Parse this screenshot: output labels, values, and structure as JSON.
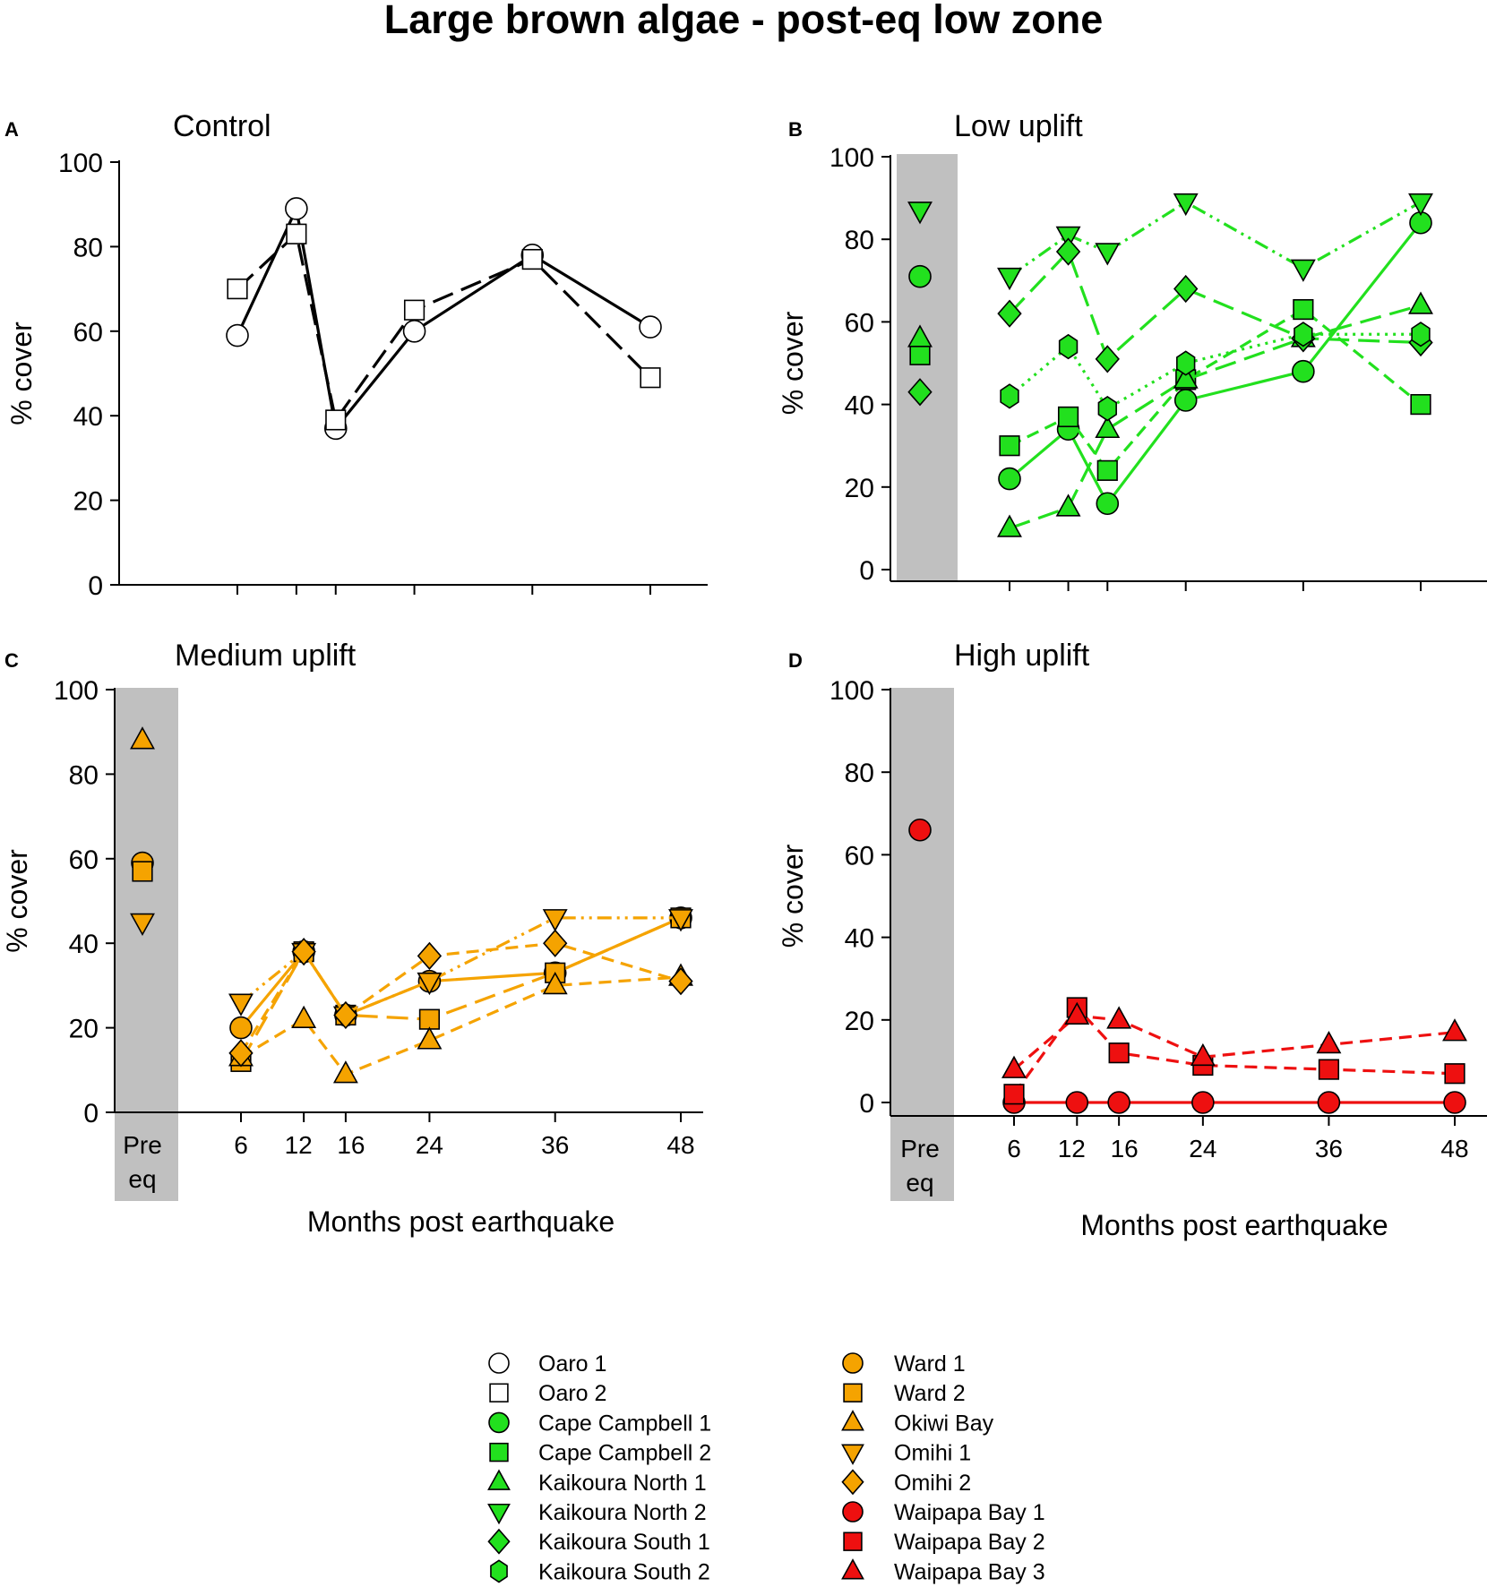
{
  "title": "Large brown algae - post-eq low zone",
  "chart_data": [
    {
      "type": "line",
      "letter": "A",
      "title": "Control",
      "ylabel": "% cover",
      "xlabel": "",
      "ylim": [
        0,
        100
      ],
      "yticks": [
        0,
        20,
        40,
        60,
        80,
        100
      ],
      "x": [
        6,
        12,
        16,
        24,
        36,
        48
      ],
      "xtick_labels": [],
      "pre_eq_label": "",
      "series": [
        {
          "name": "Oaro 1",
          "marker": "circle",
          "color": "#ffffff",
          "line_color": "#000000",
          "line_style": "solid",
          "pre": null,
          "values": [
            59,
            89,
            37,
            60,
            78,
            61
          ]
        },
        {
          "name": "Oaro 2",
          "marker": "square",
          "color": "#ffffff",
          "line_color": "#000000",
          "line_style": "longdash",
          "pre": null,
          "values": [
            70,
            83,
            39,
            65,
            77,
            49
          ]
        }
      ]
    },
    {
      "type": "line",
      "letter": "B",
      "title": "Low uplift",
      "ylabel": "% cover",
      "xlabel": "",
      "ylim": [
        0,
        100
      ],
      "yticks": [
        0,
        20,
        40,
        60,
        80,
        100
      ],
      "x": [
        6,
        12,
        16,
        24,
        36,
        48
      ],
      "xtick_labels": [],
      "pre_eq_label": "",
      "series": [
        {
          "name": "Cape Campbell 1",
          "marker": "circle",
          "color": "#22e01e",
          "line_color": "#22e01e",
          "line_style": "solid",
          "pre": 71,
          "values": [
            22,
            34,
            16,
            41,
            48,
            84
          ]
        },
        {
          "name": "Cape Campbell 2",
          "marker": "square",
          "color": "#22e01e",
          "line_color": "#22e01e",
          "line_style": "dash",
          "pre": 52,
          "values": [
            30,
            37,
            24,
            46,
            63,
            40
          ]
        },
        {
          "name": "Kaikoura North 1",
          "marker": "triangle-up",
          "color": "#22e01e",
          "line_color": "#22e01e",
          "line_style": "longdash",
          "pre": 56,
          "values": [
            10,
            15,
            34,
            46,
            56,
            64
          ]
        },
        {
          "name": "Kaikoura North 2",
          "marker": "triangle-down",
          "color": "#22e01e",
          "line_color": "#22e01e",
          "line_style": "dashdotdot",
          "pre": 87,
          "values": [
            71,
            81,
            77,
            89,
            73,
            89
          ]
        },
        {
          "name": "Kaikoura South 1",
          "marker": "diamond",
          "color": "#22e01e",
          "line_color": "#22e01e",
          "line_style": "longdash",
          "pre": 43,
          "values": [
            62,
            77,
            51,
            68,
            56,
            55
          ]
        },
        {
          "name": "Kaikoura South 2",
          "marker": "hexagon",
          "color": "#22e01e",
          "line_color": "#22e01e",
          "line_style": "dot",
          "pre": null,
          "values": [
            42,
            54,
            39,
            50,
            57,
            57
          ]
        }
      ]
    },
    {
      "type": "line",
      "letter": "C",
      "title": "Medium uplift",
      "ylabel": "% cover",
      "xlabel": "Months post earthquake",
      "ylim": [
        0,
        100
      ],
      "yticks": [
        0,
        20,
        40,
        60,
        80,
        100
      ],
      "x": [
        6,
        12,
        16,
        24,
        36,
        48
      ],
      "xtick_labels": [
        "6",
        "12",
        "16",
        "24",
        "36",
        "48"
      ],
      "pre_eq_label": [
        "Pre",
        "eq"
      ],
      "series": [
        {
          "name": "Ward 1",
          "marker": "circle",
          "color": "#f5a300",
          "line_color": "#f5a300",
          "line_style": "solid",
          "pre": 59,
          "values": [
            20,
            38,
            23,
            31,
            33,
            46
          ]
        },
        {
          "name": "Ward 2",
          "marker": "square",
          "color": "#f5a300",
          "line_color": "#f5a300",
          "line_style": "longdash",
          "pre": 57,
          "values": [
            12,
            38,
            23,
            22,
            33,
            46
          ]
        },
        {
          "name": "Okiwi Bay",
          "marker": "triangle-up",
          "color": "#f5a300",
          "line_color": "#f5a300",
          "line_style": "dash",
          "pre": 88,
          "values": [
            13,
            22,
            9,
            17,
            30,
            32
          ]
        },
        {
          "name": "Omihi 1",
          "marker": "triangle-down",
          "color": "#f5a300",
          "line_color": "#f5a300",
          "line_style": "dashdotdot",
          "pre": 45,
          "values": [
            26,
            38,
            23,
            31,
            46,
            46
          ]
        },
        {
          "name": "Omihi 2",
          "marker": "diamond",
          "color": "#f5a300",
          "line_color": "#f5a300",
          "line_style": "dash",
          "pre": null,
          "values": [
            14,
            38,
            23,
            37,
            40,
            31
          ]
        }
      ]
    },
    {
      "type": "line",
      "letter": "D",
      "title": "High uplift",
      "ylabel": "% cover",
      "xlabel": "Months post earthquake",
      "ylim": [
        0,
        100
      ],
      "yticks": [
        0,
        20,
        40,
        60,
        80,
        100
      ],
      "x": [
        6,
        12,
        16,
        24,
        36,
        48
      ],
      "xtick_labels": [
        "6",
        "12",
        "16",
        "24",
        "36",
        "48"
      ],
      "pre_eq_label": [
        "Pre",
        "eq"
      ],
      "series": [
        {
          "name": "Waipapa Bay 1",
          "marker": "circle",
          "color": "#ee1010",
          "line_color": "#ee1010",
          "line_style": "solid",
          "pre": 66,
          "values": [
            0,
            0,
            0,
            0,
            0,
            0
          ]
        },
        {
          "name": "Waipapa Bay 2",
          "marker": "square",
          "color": "#ee1010",
          "line_color": "#ee1010",
          "line_style": "dash",
          "pre": null,
          "values": [
            2,
            23,
            12,
            9,
            8,
            7
          ]
        },
        {
          "name": "Waipapa Bay 3",
          "marker": "triangle-up",
          "color": "#ee1010",
          "line_color": "#ee1010",
          "line_style": "dash",
          "pre": null,
          "values": [
            8,
            21,
            20,
            11,
            14,
            17
          ]
        }
      ]
    }
  ],
  "legend": {
    "placement": "bottom-center",
    "entries": [
      {
        "label": "Oaro 1",
        "marker": "circle",
        "color": "#ffffff"
      },
      {
        "label": "Oaro 2",
        "marker": "square",
        "color": "#ffffff"
      },
      {
        "label": "Cape Campbell 1",
        "marker": "circle",
        "color": "#22e01e"
      },
      {
        "label": "Cape Campbell 2",
        "marker": "square",
        "color": "#22e01e"
      },
      {
        "label": "Kaikoura North 1",
        "marker": "triangle-up",
        "color": "#22e01e"
      },
      {
        "label": "Kaikoura North 2",
        "marker": "triangle-down",
        "color": "#22e01e"
      },
      {
        "label": "Kaikoura South 1",
        "marker": "diamond",
        "color": "#22e01e"
      },
      {
        "label": "Kaikoura South 2",
        "marker": "hexagon",
        "color": "#22e01e"
      },
      {
        "label": "Ward 1",
        "marker": "circle",
        "color": "#f5a300"
      },
      {
        "label": "Ward 2",
        "marker": "square",
        "color": "#f5a300"
      },
      {
        "label": "Okiwi Bay",
        "marker": "triangle-up",
        "color": "#f5a300"
      },
      {
        "label": "Omihi 1",
        "marker": "triangle-down",
        "color": "#f5a300"
      },
      {
        "label": "Omihi 2",
        "marker": "diamond",
        "color": "#f5a300"
      },
      {
        "label": "Waipapa Bay 1",
        "marker": "circle",
        "color": "#ee1010"
      },
      {
        "label": "Waipapa Bay 2",
        "marker": "square",
        "color": "#ee1010"
      },
      {
        "label": "Waipapa Bay 3",
        "marker": "triangle-up",
        "color": "#ee1010"
      }
    ]
  }
}
